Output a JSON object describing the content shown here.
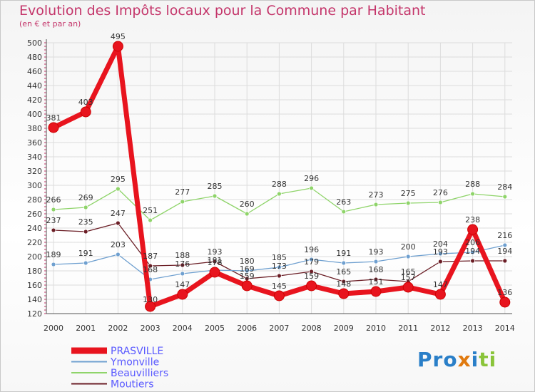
{
  "chart_data": {
    "type": "line",
    "title": "Evolution des Impôts locaux pour la Commune par Habitant",
    "subtitle": "(en € et par an)",
    "x": [
      "2000",
      "2001",
      "2002",
      "2003",
      "2004",
      "2005",
      "2006",
      "2007",
      "2008",
      "2009",
      "2010",
      "2011",
      "2012",
      "2013",
      "2014"
    ],
    "ylim": [
      120,
      500
    ],
    "yticks": [
      120,
      140,
      160,
      180,
      200,
      220,
      240,
      260,
      280,
      300,
      320,
      340,
      360,
      380,
      400,
      420,
      440,
      460,
      480,
      500
    ],
    "grid": true,
    "legend_position": "bottom-left",
    "series": [
      {
        "name": "PRASVILLE",
        "color": "#e8141e",
        "values": [
          381,
          403,
          495,
          130,
          147,
          178,
          159,
          145,
          159,
          148,
          151,
          157,
          147,
          238,
          136
        ]
      },
      {
        "name": "Ymonville",
        "color": "#6fa0d0",
        "values": [
          189,
          191,
          203,
          168,
          176,
          181,
          180,
          185,
          196,
          191,
          193,
          200,
          204,
          206,
          216
        ]
      },
      {
        "name": "Beauvilliers",
        "color": "#8fd46a",
        "values": [
          266,
          269,
          295,
          251,
          277,
          285,
          260,
          288,
          296,
          263,
          273,
          275,
          276,
          288,
          284
        ]
      },
      {
        "name": "Moutiers",
        "color": "#6b1e26",
        "values": [
          237,
          235,
          247,
          187,
          188,
          193,
          169,
          173,
          179,
          165,
          168,
          165,
          193,
          194,
          194
        ]
      }
    ]
  },
  "logo_text": "Proxiti"
}
